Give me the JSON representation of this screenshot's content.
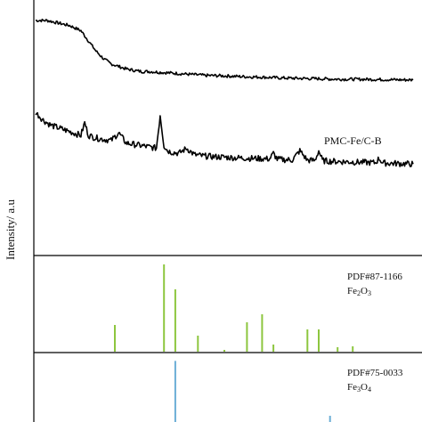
{
  "chart_data": [
    {
      "type": "line",
      "title": "",
      "ylabel": "Intensity/ a.u",
      "xlabel": "",
      "grid": false,
      "series": [
        {
          "name": "",
          "color": "#000000",
          "x": [
            0,
            3,
            6,
            9,
            12,
            14,
            16,
            18,
            20,
            22,
            24,
            26,
            28,
            30,
            35,
            40,
            45,
            50,
            55,
            60,
            65,
            70,
            75,
            80,
            85,
            90,
            95,
            100
          ],
          "y": [
            92,
            92,
            91,
            90,
            88,
            84,
            80,
            77,
            75,
            74,
            73,
            72.5,
            72,
            72,
            71.5,
            71,
            70.5,
            70.3,
            70,
            69.8,
            69.5,
            69.3,
            69.2,
            69,
            69,
            68.9,
            68.8,
            68.7
          ]
        },
        {
          "name": "PMC-Fe/C-B",
          "color": "#000000",
          "x": [
            0,
            2,
            4,
            6,
            8,
            10,
            12,
            13,
            14,
            16,
            18,
            20,
            22,
            24,
            26,
            28,
            30,
            32,
            33,
            34,
            35,
            36,
            38,
            40,
            42,
            44,
            46,
            48,
            50,
            52,
            54,
            56,
            58,
            60,
            62,
            63,
            64,
            65,
            66,
            68,
            70,
            72,
            74,
            75,
            76,
            77,
            78,
            80,
            82,
            84,
            86,
            88,
            90,
            91,
            92,
            94,
            96,
            98,
            100
          ],
          "y": [
            56,
            53,
            51,
            50,
            49,
            48,
            47,
            52,
            47,
            46,
            45.5,
            45,
            48,
            44,
            43.5,
            43,
            42.5,
            42,
            55,
            43,
            41,
            40.5,
            40,
            42,
            39.5,
            39,
            38.8,
            38.6,
            38.5,
            38.3,
            38.2,
            38.1,
            38,
            37.9,
            37.8,
            40,
            37.7,
            37.6,
            37.5,
            37.4,
            41,
            37.3,
            37.2,
            41,
            37.1,
            37,
            36.9,
            36.8,
            36.7,
            36.6,
            36.5,
            36.4,
            36.3,
            38,
            36.2,
            36.1,
            36,
            35.9,
            35.8
          ]
        }
      ]
    },
    {
      "type": "bar",
      "title": "",
      "reference": "PDF#87-1166",
      "phase": "Fe",
      "phase_sub1": "2",
      "phase_mid": "O",
      "phase_sub2": "3",
      "color": "#8dc63f",
      "x": [
        21,
        34,
        37,
        43,
        50,
        56,
        60,
        63,
        72,
        75,
        80,
        84
      ],
      "values": [
        30,
        98,
        70,
        18,
        2,
        33,
        42,
        8,
        25,
        25,
        5,
        6
      ],
      "ylim": [
        0,
        100
      ]
    },
    {
      "type": "bar",
      "title": "",
      "reference": "PDF#75-0033",
      "phase": "Fe",
      "phase_sub1": "3",
      "phase_mid": "O",
      "phase_sub2": "4",
      "color": "#6baed6",
      "x": [
        37,
        78
      ],
      "values": [
        98,
        10
      ],
      "ylim": [
        0,
        100
      ]
    }
  ]
}
